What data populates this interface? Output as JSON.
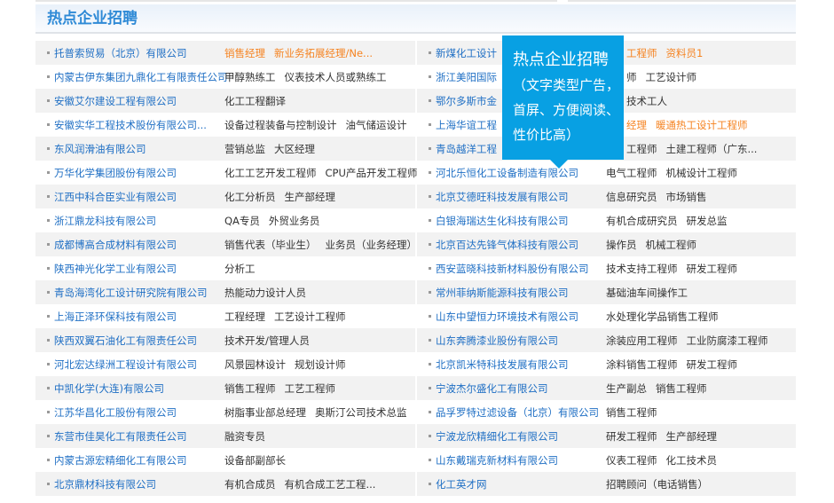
{
  "section": {
    "title": "热点企业招聘"
  },
  "tooltip": {
    "title": "热点企业招聘",
    "description": "（文字类型广告，首屏、方便阅读、性价比高）"
  },
  "colors": {
    "link": "#1f6fc4",
    "hot": "#f5821f",
    "tooltip": "#08a0e3",
    "title": "#2f8ad6"
  },
  "rows": [
    {
      "left": {
        "company": "托普索贸易（北京）有限公司",
        "jobs": [
          "销售经理",
          "新业务拓展经理/Ne..."
        ],
        "hot": true
      },
      "right": {
        "company": "新煤化工设计",
        "jobs": [
          "工程师",
          "资料员1"
        ],
        "hot": true
      }
    },
    {
      "left": {
        "company": "内蒙古伊东集团九鼎化工有限责任公司",
        "jobs": [
          "甲醇熟练工",
          "仪表技术人员或熟练工"
        ]
      },
      "right": {
        "company": "浙江美阳国际",
        "jobs": [
          "师",
          "工艺设计师"
        ]
      }
    },
    {
      "left": {
        "company": "安徽艾尔建设工程有限公司",
        "jobs": [
          "化工工程翻译"
        ]
      },
      "right": {
        "company": "鄂尔多斯市金",
        "jobs": [
          "技术工人"
        ]
      }
    },
    {
      "left": {
        "company": "安徽实华工程技术股份有限公司...",
        "jobs": [
          "设备过程装备与控制设计",
          "油气储运设计"
        ]
      },
      "right": {
        "company": "上海华谊工程",
        "jobs": [
          "经理",
          "暖通热工设计工程师"
        ],
        "hot": true
      }
    },
    {
      "left": {
        "company": "东风润滑油有限公司",
        "jobs": [
          "营销总监",
          "大区经理"
        ]
      },
      "right": {
        "company": "青岛越洋工程",
        "jobs": [
          "工程师",
          "土建工程师（广东..."
        ]
      }
    },
    {
      "left": {
        "company": "万华化学集团股份有限公司",
        "jobs": [
          "化工工艺开发工程师",
          "CPU产品开发工程师"
        ]
      },
      "right": {
        "company": "河北乐恒化工设备制造有限公司",
        "jobs": [
          "电气工程师",
          "机械设计工程师"
        ]
      }
    },
    {
      "left": {
        "company": "江西中科合臣实业有限公司",
        "jobs": [
          "化工分析员",
          "生产部经理"
        ]
      },
      "right": {
        "company": "北京艾德旺科技发展有限公司",
        "jobs": [
          "信息研究员",
          "市场销售"
        ]
      }
    },
    {
      "left": {
        "company": "浙江鼎龙科技有限公司",
        "jobs": [
          "QA专员",
          "外贸业务员"
        ]
      },
      "right": {
        "company": "白银海瑞达生化科技有限公司",
        "jobs": [
          "有机合成研究员",
          "研发总监"
        ]
      }
    },
    {
      "left": {
        "company": "成都博高合成材料有限公司",
        "jobs": [
          "销售代表（毕业生）",
          "业务员（业务经理）"
        ]
      },
      "right": {
        "company": "北京百达先锋气体科技有限公司",
        "jobs": [
          "操作员",
          "机械工程师"
        ]
      }
    },
    {
      "left": {
        "company": "陕西神光化学工业有限公司",
        "jobs": [
          "分析工"
        ]
      },
      "right": {
        "company": "西安蓝晓科技新材料股份有限公司",
        "jobs": [
          "技术支持工程师",
          "研发工程师"
        ]
      }
    },
    {
      "left": {
        "company": "青岛海湾化工设计研究院有限公司",
        "jobs": [
          "热能动力设计人员"
        ]
      },
      "right": {
        "company": "常州菲纳斯能源科技有限公司",
        "jobs": [
          "基础油车间操作工"
        ]
      }
    },
    {
      "left": {
        "company": "上海正泽环保科技有限公司",
        "jobs": [
          "工程经理",
          "工艺设计工程师"
        ]
      },
      "right": {
        "company": "山东中望恒力环境技术有限公司",
        "jobs": [
          "水处理化学品销售工程师"
        ]
      }
    },
    {
      "left": {
        "company": "陕西双翼石油化工有限责任公司",
        "jobs": [
          "技术开发/管理人员"
        ]
      },
      "right": {
        "company": "山东奔腾漆业股份有限公司",
        "jobs": [
          "涂装应用工程师",
          "工业防腐漆工程师"
        ]
      }
    },
    {
      "left": {
        "company": "河北宏达绿洲工程设计有限公司",
        "jobs": [
          "风景园林设计",
          "规划设计师"
        ]
      },
      "right": {
        "company": "北京凯米特科技发展有限公司",
        "jobs": [
          "涂料销售工程师",
          "研发工程师"
        ]
      }
    },
    {
      "left": {
        "company": "中凯化学(大连)有限公司",
        "jobs": [
          "销售工程师",
          "工艺工程师"
        ]
      },
      "right": {
        "company": "宁波杰尔盛化工有限公司",
        "jobs": [
          "生产副总",
          "销售工程师"
        ]
      }
    },
    {
      "left": {
        "company": "江苏华昌化工股份有限公司",
        "jobs": [
          "树脂事业部总经理",
          "奥斯汀公司技术总监"
        ]
      },
      "right": {
        "company": "品孚罗特过滤设备（北京）有限公司",
        "jobs": [
          "销售工程师"
        ]
      }
    },
    {
      "left": {
        "company": "东营市佳昊化工有限责任公司",
        "jobs": [
          "融资专员"
        ]
      },
      "right": {
        "company": "宁波龙欣精细化工有限公司",
        "jobs": [
          "研发工程师",
          "生产部经理"
        ]
      }
    },
    {
      "left": {
        "company": "内蒙古源宏精细化工有限公司",
        "jobs": [
          "设备部副部长"
        ]
      },
      "right": {
        "company": "山东戴瑞克新材料有限公司",
        "jobs": [
          "仪表工程师",
          "化工技术员"
        ]
      }
    },
    {
      "left": {
        "company": "北京鼎材科技有限公司",
        "jobs": [
          "有机合成员",
          "有机合成工艺工程..."
        ]
      },
      "right": {
        "company": "化工英才网",
        "jobs": [
          "招聘顾问（电话销售）"
        ]
      }
    }
  ]
}
